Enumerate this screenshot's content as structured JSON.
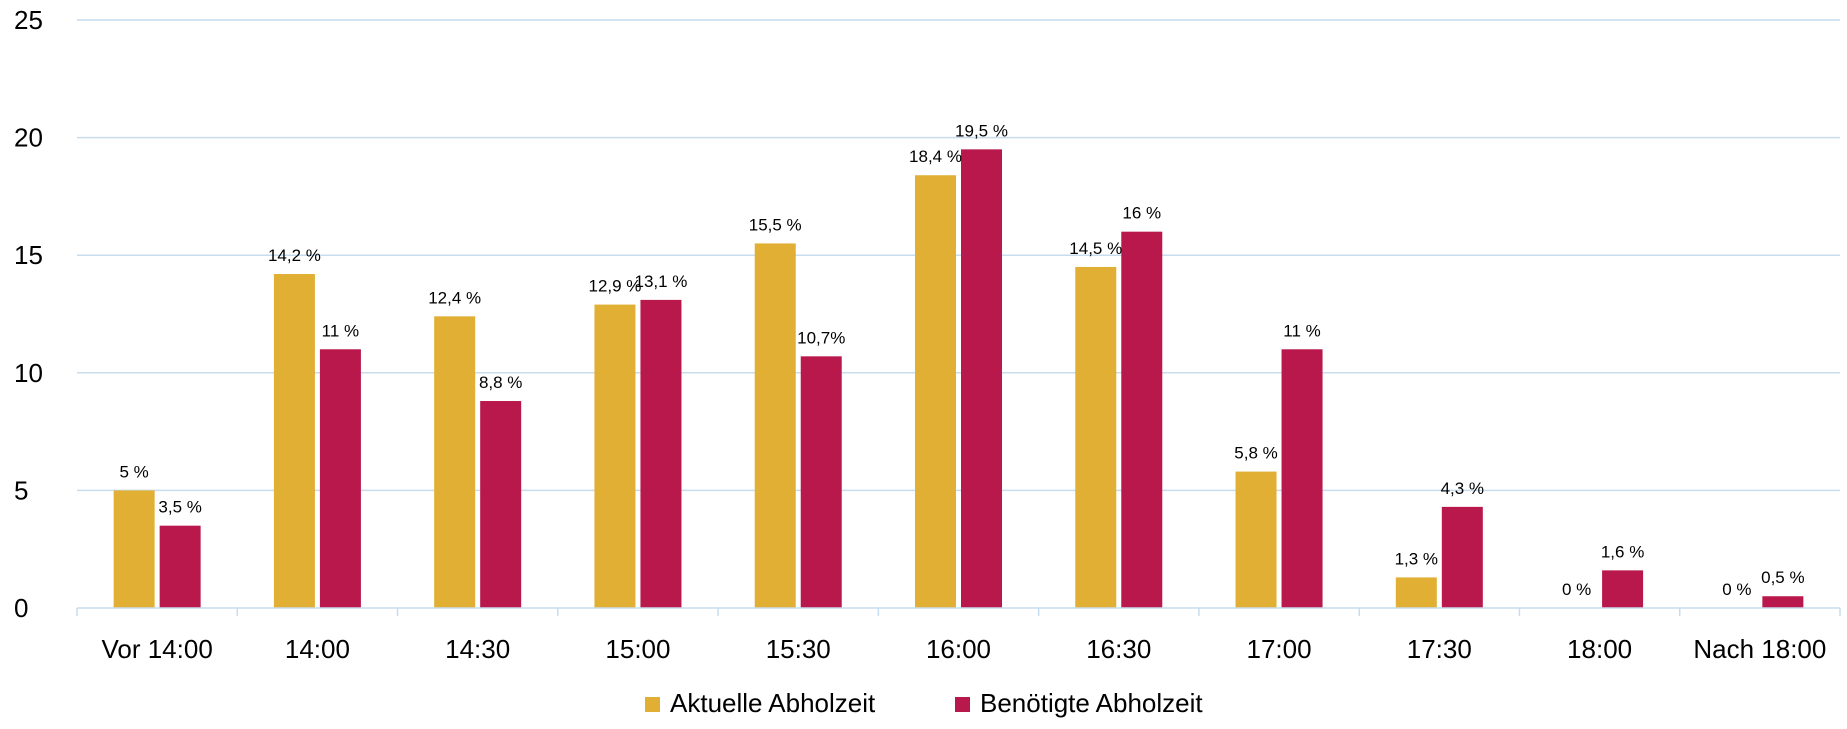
{
  "chart_data": {
    "type": "bar",
    "title": "",
    "xlabel": "",
    "ylabel": "",
    "ylim": [
      0,
      25
    ],
    "yticks": [
      0,
      5,
      10,
      15,
      20,
      25
    ],
    "grid": true,
    "legend_position": "bottom-center",
    "categories": [
      "Vor 14:00",
      "14:00",
      "14:30",
      "15:00",
      "15:30",
      "16:00",
      "16:30",
      "17:00",
      "17:30",
      "18:00",
      "Nach 18:00"
    ],
    "series": [
      {
        "name": "Aktuelle Abholzeit",
        "color": "#e0af33",
        "values": [
          5,
          14.2,
          12.4,
          12.9,
          15.5,
          18.4,
          14.5,
          5.8,
          1.3,
          0,
          0
        ],
        "labels": [
          "5 %",
          "14,2 %",
          "12,4 %",
          "12,9 %",
          "15,5 %",
          "18,4 %",
          "14,5 %",
          "5,8 %",
          "1,3 %",
          "0 %",
          "0 %"
        ]
      },
      {
        "name": "Benötigte Abholzeit",
        "color": "#b8184b",
        "values": [
          3.5,
          11,
          8.8,
          13.1,
          10.7,
          19.5,
          16,
          11,
          4.3,
          1.6,
          0.5
        ],
        "labels": [
          "3,5 %",
          "11 %",
          "8,8 %",
          "13,1 %",
          "10,7%",
          "19,5 %",
          "16 %",
          "11 %",
          "4,3 %",
          "1,6 %",
          "0,5 %"
        ]
      }
    ]
  }
}
